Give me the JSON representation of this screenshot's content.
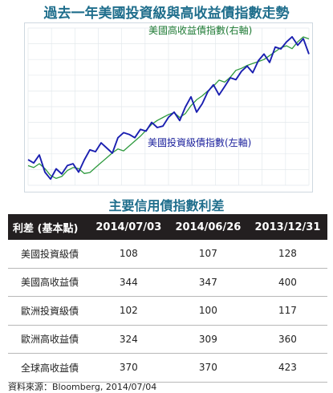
{
  "title": "過去一年美國投資級與高收益債指數走勢",
  "chart_data": {
    "type": "line",
    "series": [
      {
        "name": "美國高收益債指數(右軸)",
        "color": "#2e9a3e",
        "axis": "right",
        "values": [
          1260,
          1258,
          1262,
          1257,
          1250,
          1247,
          1249,
          1255,
          1258,
          1257,
          1252,
          1253,
          1258,
          1263,
          1268,
          1273,
          1277,
          1275,
          1280,
          1285,
          1290,
          1296,
          1302,
          1306,
          1309,
          1312,
          1314,
          1309,
          1313,
          1321,
          1327,
          1331,
          1336,
          1341,
          1347,
          1345,
          1350,
          1357,
          1359,
          1362,
          1364,
          1366,
          1368,
          1372,
          1376,
          1380,
          1382,
          1379,
          1386,
          1391,
          1389
        ]
      },
      {
        "name": "美國投資級債指數(左軸)",
        "color": "#1a1fb0",
        "axis": "left",
        "values": [
          2520,
          2511,
          2533,
          2486,
          2467,
          2495,
          2481,
          2504,
          2509,
          2486,
          2519,
          2547,
          2542,
          2566,
          2552,
          2538,
          2580,
          2594,
          2589,
          2580,
          2603,
          2598,
          2622,
          2608,
          2612,
          2636,
          2650,
          2627,
          2664,
          2692,
          2650,
          2673,
          2706,
          2725,
          2697,
          2720,
          2744,
          2739,
          2762,
          2776,
          2758,
          2791,
          2809,
          2786,
          2828,
          2823,
          2842,
          2856,
          2833,
          2851,
          2809
        ]
      }
    ],
    "annotations": [
      "美國高收益債指數(右軸)",
      "美國投資級債指數(左軸)"
    ],
    "left_axis": {
      "ylim": [
        2450,
        2880
      ]
    },
    "right_axis": {
      "ylim": [
        1240,
        1400
      ]
    },
    "grid": true,
    "legend": "none"
  },
  "table": {
    "subtitle": "主要信用債指數利差",
    "headers": [
      "利差 (基本點)",
      "2014/07/03",
      "2014/06/26",
      "2013/12/31"
    ],
    "rows": [
      [
        "美國投資級債",
        "108",
        "107",
        "128"
      ],
      [
        "美國高收益債",
        "344",
        "347",
        "400"
      ],
      [
        "歐洲投資級債",
        "102",
        "100",
        "117"
      ],
      [
        "歐洲高收益債",
        "324",
        "309",
        "360"
      ],
      [
        "全球高收益債",
        "370",
        "370",
        "423"
      ]
    ]
  },
  "source": "資料來源：Bloomberg, 2014/07/04"
}
